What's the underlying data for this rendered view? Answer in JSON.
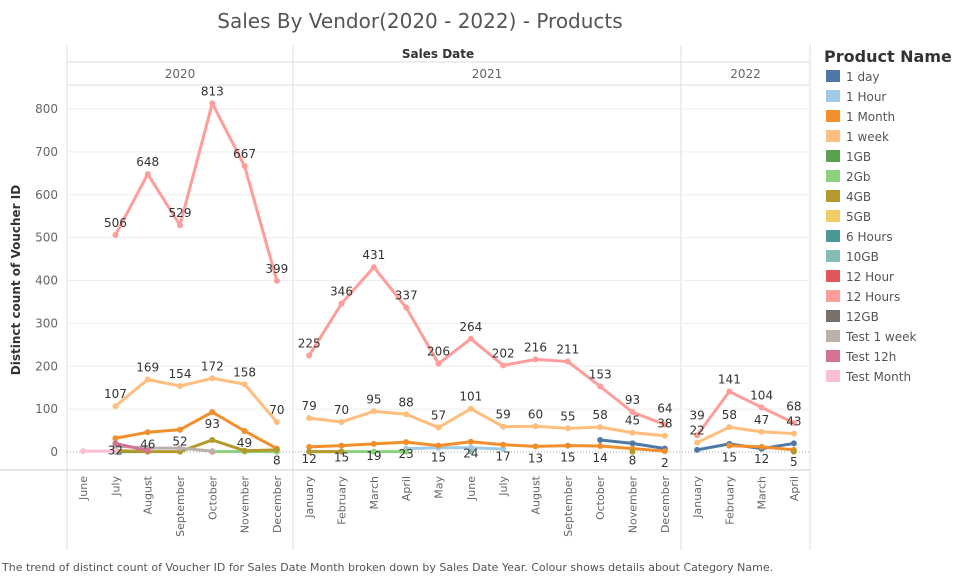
{
  "chart_data": {
    "type": "line",
    "title": "Sales By Vendor(2020 - 2022) - Products",
    "column_header": "Sales Date",
    "ylabel": "Distinct count of Voucher ID",
    "ylim": [
      0,
      850
    ],
    "yticks": [
      0,
      100,
      200,
      300,
      400,
      500,
      600,
      700,
      800
    ],
    "grid": true,
    "legend_title": "Product Name",
    "legend_position": "right",
    "caption": "The trend of distinct count of Voucher ID for Sales Date Month broken down by Sales Date Year. Colour shows details about Category Name.",
    "years": [
      {
        "year": "2020",
        "months": [
          "June",
          "July",
          "August",
          "September",
          "October",
          "November",
          "December"
        ]
      },
      {
        "year": "2021",
        "months": [
          "January",
          "February",
          "March",
          "April",
          "May",
          "June",
          "July",
          "August",
          "September",
          "October",
          "November",
          "December"
        ]
      },
      {
        "year": "2022",
        "months": [
          "January",
          "February",
          "March",
          "April"
        ]
      }
    ],
    "series": [
      {
        "name": "1 day",
        "color": "#4e79a7",
        "values": [
          null,
          null,
          null,
          null,
          null,
          null,
          null,
          null,
          null,
          null,
          null,
          null,
          null,
          null,
          null,
          null,
          28,
          20,
          8,
          5,
          19,
          8,
          20
        ],
        "labels": false
      },
      {
        "name": "1 Hour",
        "color": "#a0cbe8",
        "values": [
          null,
          null,
          null,
          null,
          null,
          null,
          null,
          null,
          null,
          null,
          8,
          10,
          10,
          7,
          null,
          null,
          null,
          null,
          null,
          null,
          null,
          null,
          null
        ],
        "labels": false
      },
      {
        "name": "1 Month",
        "color": "#f28e2b",
        "values": [
          null,
          32,
          46,
          52,
          93,
          49,
          8,
          12,
          15,
          19,
          23,
          15,
          24,
          17,
          13,
          15,
          14,
          8,
          2,
          null,
          15,
          12,
          5
        ],
        "labels": true
      },
      {
        "name": "1 week",
        "color": "#ffbe7d",
        "values": [
          null,
          107,
          169,
          154,
          172,
          158,
          70,
          79,
          70,
          95,
          88,
          57,
          101,
          59,
          60,
          55,
          58,
          45,
          38,
          22,
          58,
          47,
          43
        ],
        "labels": true
      },
      {
        "name": "1GB",
        "color": "#59a14f",
        "values": [
          null,
          1,
          1,
          null,
          null,
          null,
          null,
          null,
          null,
          null,
          null,
          null,
          null,
          null,
          null,
          null,
          null,
          null,
          null,
          null,
          null,
          null,
          null
        ],
        "labels": false
      },
      {
        "name": "2Gb",
        "color": "#8cd17d",
        "values": [
          null,
          null,
          null,
          null,
          1,
          1,
          1,
          1,
          1,
          1,
          1,
          null,
          null,
          null,
          null,
          null,
          null,
          null,
          null,
          null,
          null,
          null,
          null
        ],
        "labels": false
      },
      {
        "name": "4GB",
        "color": "#b6992d",
        "values": [
          null,
          3,
          1,
          1,
          28,
          3,
          5,
          1,
          1,
          null,
          null,
          null,
          null,
          null,
          null,
          null,
          null,
          1,
          null,
          null,
          null,
          null,
          1
        ],
        "labels": false
      },
      {
        "name": "5GB",
        "color": "#f1ce63",
        "values": [
          null,
          null,
          null,
          null,
          1,
          null,
          null,
          null,
          null,
          null,
          null,
          null,
          null,
          null,
          null,
          null,
          null,
          null,
          null,
          null,
          null,
          null,
          null
        ],
        "labels": false
      },
      {
        "name": "6 Hours",
        "color": "#499894",
        "values": [
          null,
          1,
          null,
          null,
          null,
          null,
          null,
          null,
          null,
          null,
          null,
          null,
          null,
          null,
          null,
          null,
          null,
          null,
          null,
          null,
          null,
          null,
          null
        ],
        "labels": false
      },
      {
        "name": "10GB",
        "color": "#86bcb6",
        "values": [
          null,
          null,
          null,
          null,
          null,
          null,
          null,
          null,
          null,
          null,
          null,
          null,
          1,
          null,
          null,
          null,
          null,
          null,
          null,
          null,
          null,
          null,
          null
        ],
        "labels": false
      },
      {
        "name": "12 Hour",
        "color": "#e15759",
        "values": [
          null,
          null,
          null,
          null,
          1,
          null,
          null,
          null,
          null,
          null,
          null,
          null,
          null,
          null,
          null,
          null,
          null,
          null,
          null,
          null,
          null,
          null,
          null
        ],
        "labels": false
      },
      {
        "name": "12 Hours",
        "color": "#ff9d9a",
        "values": [
          null,
          506,
          648,
          529,
          813,
          667,
          399,
          225,
          346,
          431,
          337,
          206,
          264,
          202,
          216,
          211,
          153,
          93,
          64,
          39,
          141,
          104,
          68
        ],
        "labels": true
      },
      {
        "name": "12GB",
        "color": "#79706e",
        "values": [
          null,
          null,
          null,
          null,
          null,
          null,
          null,
          null,
          null,
          null,
          null,
          null,
          null,
          null,
          null,
          null,
          null,
          null,
          null,
          null,
          null,
          null,
          null
        ],
        "labels": false
      },
      {
        "name": "Test 1 week",
        "color": "#bab0ac",
        "values": [
          null,
          14,
          9,
          9,
          2,
          null,
          null,
          null,
          null,
          null,
          null,
          null,
          null,
          null,
          null,
          null,
          null,
          null,
          null,
          null,
          null,
          null,
          null
        ],
        "labels": false
      },
      {
        "name": "Test 12h",
        "color": "#d37295",
        "values": [
          null,
          20,
          3,
          null,
          null,
          null,
          null,
          null,
          null,
          null,
          null,
          null,
          null,
          null,
          null,
          null,
          null,
          null,
          null,
          null,
          null,
          null,
          null
        ],
        "labels": false
      },
      {
        "name": "Test Month",
        "color": "#fabfd2",
        "values": [
          2,
          2,
          null,
          null,
          null,
          null,
          null,
          null,
          null,
          null,
          null,
          null,
          null,
          null,
          null,
          null,
          null,
          null,
          null,
          null,
          null,
          null,
          null
        ],
        "labels": false
      }
    ]
  }
}
